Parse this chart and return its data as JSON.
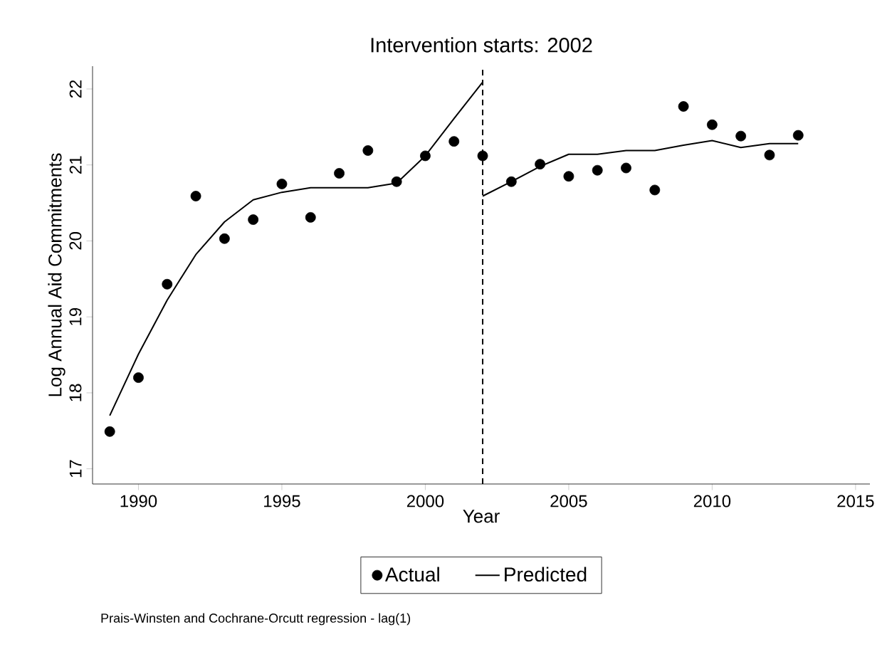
{
  "chart_data": {
    "type": "scatter",
    "title": "Intervention starts: 2002",
    "xlabel": "Year",
    "ylabel": "Log Annual Aid Commitments",
    "xlim": [
      1988.4,
      2015.5
    ],
    "xticks": [
      1990,
      1995,
      2000,
      2005,
      2010,
      2015
    ],
    "ylim": [
      16.8,
      22.3
    ],
    "yticks": [
      17,
      18,
      19,
      20,
      21,
      22
    ],
    "grid": false,
    "legend": "bottom",
    "series": [
      {
        "name": "Actual",
        "marker": "circle",
        "color": "#000000",
        "x": [
          1989,
          1990,
          1991,
          1992,
          1993,
          1994,
          1995,
          1996,
          1997,
          1998,
          1999,
          2000,
          2001,
          2002,
          2003,
          2004,
          2005,
          2006,
          2007,
          2008,
          2009,
          2010,
          2011,
          2012,
          2013
        ],
        "values": [
          17.49,
          18.2,
          19.43,
          20.59,
          20.03,
          20.28,
          20.75,
          20.31,
          20.89,
          21.19,
          20.78,
          21.12,
          21.31,
          21.12,
          20.78,
          21.01,
          20.85,
          20.93,
          20.96,
          20.67,
          21.77,
          21.53,
          21.38,
          21.13,
          21.39
        ]
      },
      {
        "name": "Predicted",
        "type": "line",
        "marker": "none",
        "line_style": "solid",
        "color": "#000000",
        "x": [
          1989,
          1990,
          1991,
          1992,
          1993,
          1994,
          1995,
          1996,
          1997,
          1998,
          1999,
          2000,
          2001,
          2002
        ],
        "values": [
          17.7,
          18.51,
          19.22,
          19.82,
          20.25,
          20.54,
          20.64,
          20.7,
          20.7,
          20.7,
          20.76,
          21.12,
          21.61,
          22.09
        ]
      },
      {
        "type": "line",
        "marker": "none",
        "line_style": "solid",
        "color": "#000000",
        "x": [
          2002,
          2003,
          2004,
          2005,
          2006,
          2007,
          2008,
          2009,
          2010,
          2011,
          2012,
          2013
        ],
        "values": [
          20.59,
          20.78,
          20.98,
          21.14,
          21.14,
          21.19,
          21.19,
          21.26,
          21.32,
          21.23,
          21.28,
          21.28
        ]
      }
    ],
    "ref_lines": [
      {
        "axis": "x",
        "value": 2002,
        "color": "#000000",
        "line_style": "dashed"
      }
    ],
    "annotations": [
      "Prais-Winsten and Cochrane-Orcutt regression - lag(1)"
    ]
  }
}
